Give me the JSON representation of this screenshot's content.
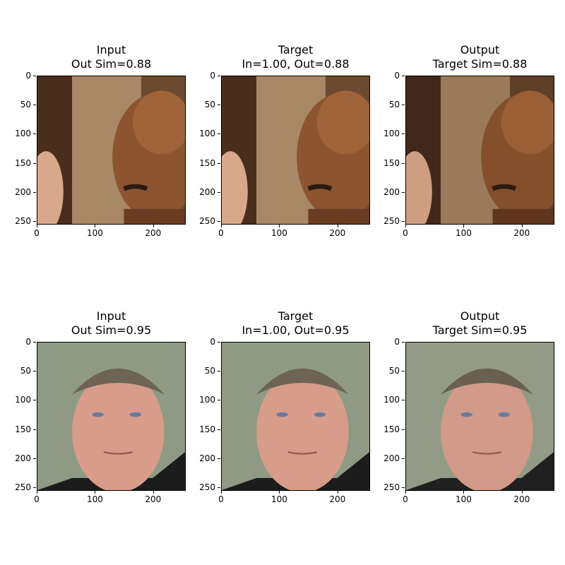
{
  "panels": [
    {
      "title_line1": "Input",
      "title_line2": "Out Sim=0.88",
      "subject": "man-bald-smiling",
      "background": "#8a6a4a"
    },
    {
      "title_line1": "Target",
      "title_line2": "In=1.00, Out=0.88",
      "subject": "man-bald-smiling",
      "background": "#8a6a4a"
    },
    {
      "title_line1": "Output",
      "title_line2": "Target Sim=0.88",
      "subject": "man-bald-smiling",
      "background": "#8a6a4a"
    },
    {
      "title_line1": "Input",
      "title_line2": "Out Sim=0.95",
      "subject": "man-portrait",
      "background": "#8e9a84"
    },
    {
      "title_line1": "Target",
      "title_line2": "In=1.00, Out=0.95",
      "subject": "man-portrait",
      "background": "#8e9a84"
    },
    {
      "title_line1": "Output",
      "title_line2": "Target Sim=0.95",
      "subject": "man-portrait",
      "background": "#8e9a84"
    }
  ],
  "axis": {
    "y_ticks": [
      "0",
      "50",
      "100",
      "150",
      "200",
      "250"
    ],
    "x_ticks": [
      "0",
      "100",
      "200"
    ]
  }
}
